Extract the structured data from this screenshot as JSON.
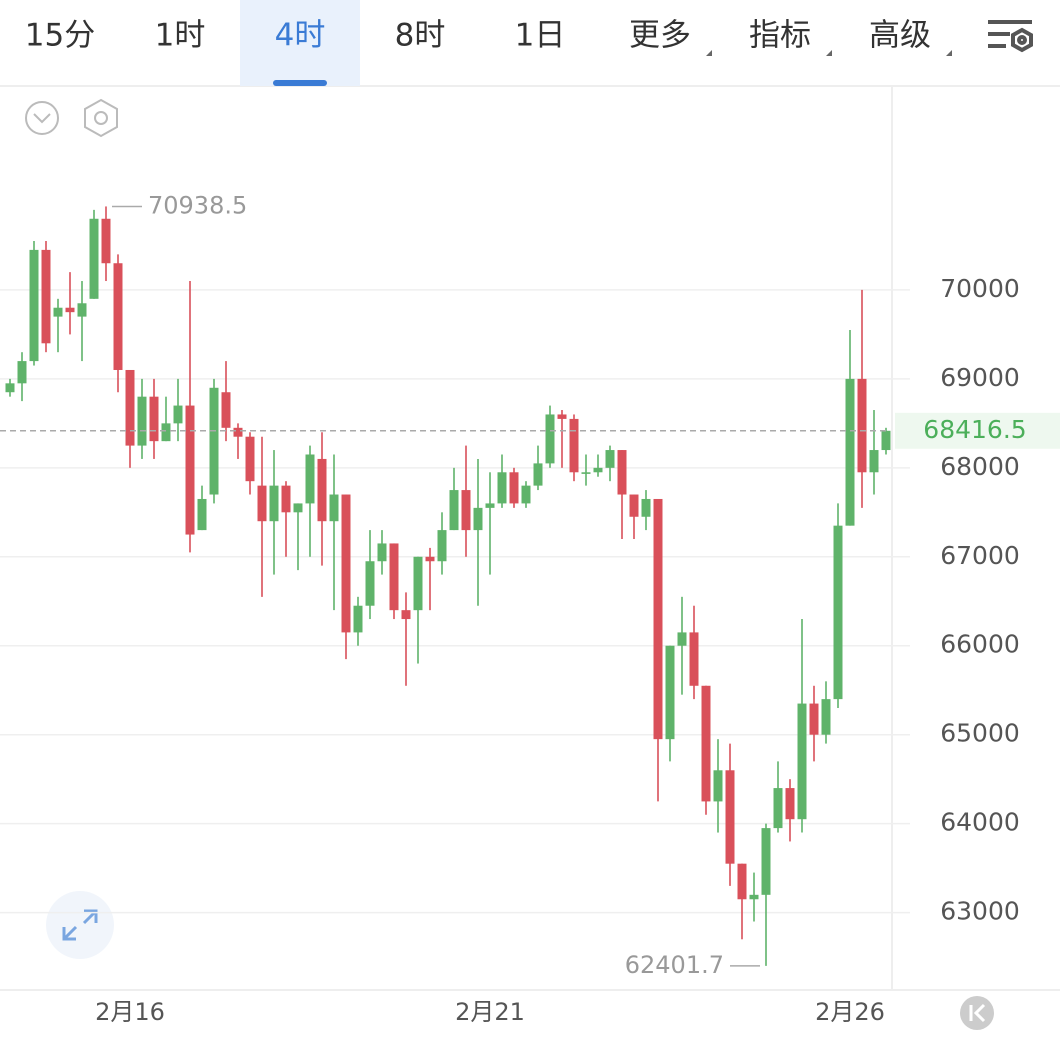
{
  "tabs": [
    "15分",
    "1时",
    "4时",
    "8时",
    "1日",
    "更多",
    "指标",
    "高级"
  ],
  "active_tab": 2,
  "chart_data": {
    "type": "candlestick",
    "categories": [
      null,
      null,
      null,
      null,
      null,
      null,
      null,
      null,
      null,
      null,
      "2月16",
      null,
      null,
      null,
      null,
      null,
      null,
      null,
      null,
      null,
      null,
      null,
      null,
      null,
      null,
      null,
      null,
      null,
      null,
      null,
      null,
      null,
      null,
      null,
      null,
      null,
      null,
      null,
      null,
      null,
      "2月21",
      null,
      null,
      null,
      null,
      null,
      null,
      null,
      null,
      null,
      null,
      null,
      null,
      null,
      null,
      null,
      null,
      null,
      null,
      null,
      null,
      null,
      null,
      null,
      null,
      null,
      null,
      null,
      null,
      null,
      "2月26",
      null,
      null,
      null
    ],
    "open": [
      68850,
      68950,
      69200,
      70450,
      69700,
      69800,
      69700,
      69900,
      70800,
      70300,
      69100,
      68250,
      68800,
      68300,
      68500,
      68700,
      67300,
      67700,
      68850,
      68450,
      68350,
      67800,
      67400,
      67800,
      67500,
      67600,
      68100,
      67400,
      67700,
      66150,
      66450,
      66950,
      67150,
      66400,
      66400,
      67000,
      66950,
      67300,
      67750,
      67300,
      67550,
      67600,
      67950,
      67600,
      67800,
      68050,
      68600,
      68550,
      67950,
      67950,
      68000,
      68200,
      67700,
      67450,
      67650,
      64950,
      66000,
      66150,
      65550,
      64250,
      64600,
      63550,
      63150,
      63200,
      63950,
      64400,
      64050,
      65350,
      65000,
      65400,
      67350,
      69000,
      67950,
      68200
    ],
    "high": [
      69000,
      69300,
      70550,
      70550,
      69900,
      70200,
      70100,
      70900,
      70938.5,
      70400,
      69050,
      69000,
      69000,
      68800,
      69000,
      70100,
      67800,
      69000,
      69200,
      68500,
      68400,
      68350,
      68200,
      67850,
      67600,
      68250,
      68400,
      68150,
      67700,
      66550,
      67300,
      67300,
      67150,
      66600,
      67000,
      67100,
      67500,
      68000,
      68250,
      68100,
      67950,
      68150,
      68000,
      67850,
      68250,
      68700,
      68650,
      68600,
      68150,
      68150,
      68250,
      68200,
      67700,
      67750,
      67650,
      66000,
      66550,
      66450,
      65550,
      64950,
      64900,
      63550,
      63450,
      64000,
      64700,
      64500,
      66300,
      65550,
      65600,
      67600,
      69550,
      70000,
      68650,
      68450
    ],
    "low": [
      68800,
      68750,
      69150,
      69300,
      69300,
      69500,
      69200,
      69900,
      70100,
      68850,
      68000,
      68100,
      68100,
      68300,
      68300,
      67050,
      67300,
      67600,
      68300,
      68100,
      67700,
      66550,
      66800,
      67000,
      66850,
      67000,
      66900,
      66400,
      65850,
      66000,
      66300,
      66800,
      66300,
      65550,
      65800,
      66400,
      66800,
      67300,
      67000,
      66450,
      66800,
      67550,
      67550,
      67550,
      67750,
      68000,
      68000,
      67850,
      67800,
      67900,
      67850,
      67200,
      67200,
      67300,
      64250,
      64700,
      65450,
      65400,
      64100,
      63900,
      63300,
      62700,
      62900,
      62401.7,
      63900,
      63800,
      63900,
      64700,
      64900,
      65300,
      67350,
      67550,
      67700,
      68150
    ],
    "close": [
      68950,
      69200,
      70450,
      69400,
      69800,
      69750,
      69850,
      70800,
      70300,
      69100,
      68250,
      68800,
      68300,
      68500,
      68700,
      67250,
      67650,
      68900,
      68450,
      68350,
      67850,
      67400,
      67800,
      67500,
      67600,
      68150,
      67400,
      67700,
      66150,
      66450,
      66950,
      67150,
      66400,
      66300,
      67000,
      66950,
      67300,
      67750,
      67300,
      67550,
      67600,
      67950,
      67600,
      67800,
      68050,
      68600,
      68550,
      67950,
      67950,
      68000,
      68200,
      67700,
      67450,
      67650,
      64950,
      66000,
      66150,
      65550,
      64250,
      64600,
      63550,
      63150,
      63200,
      63950,
      64400,
      64050,
      65350,
      65000,
      65400,
      67350,
      69000,
      67950,
      68200,
      68416.5
    ],
    "up_color": "#5fb36a",
    "down_color": "#d9505a",
    "ylim": [
      62130,
      72270
    ],
    "yticks": [
      63000,
      64000,
      65000,
      66000,
      67000,
      68000,
      69000,
      70000
    ],
    "grid": true
  }
}
